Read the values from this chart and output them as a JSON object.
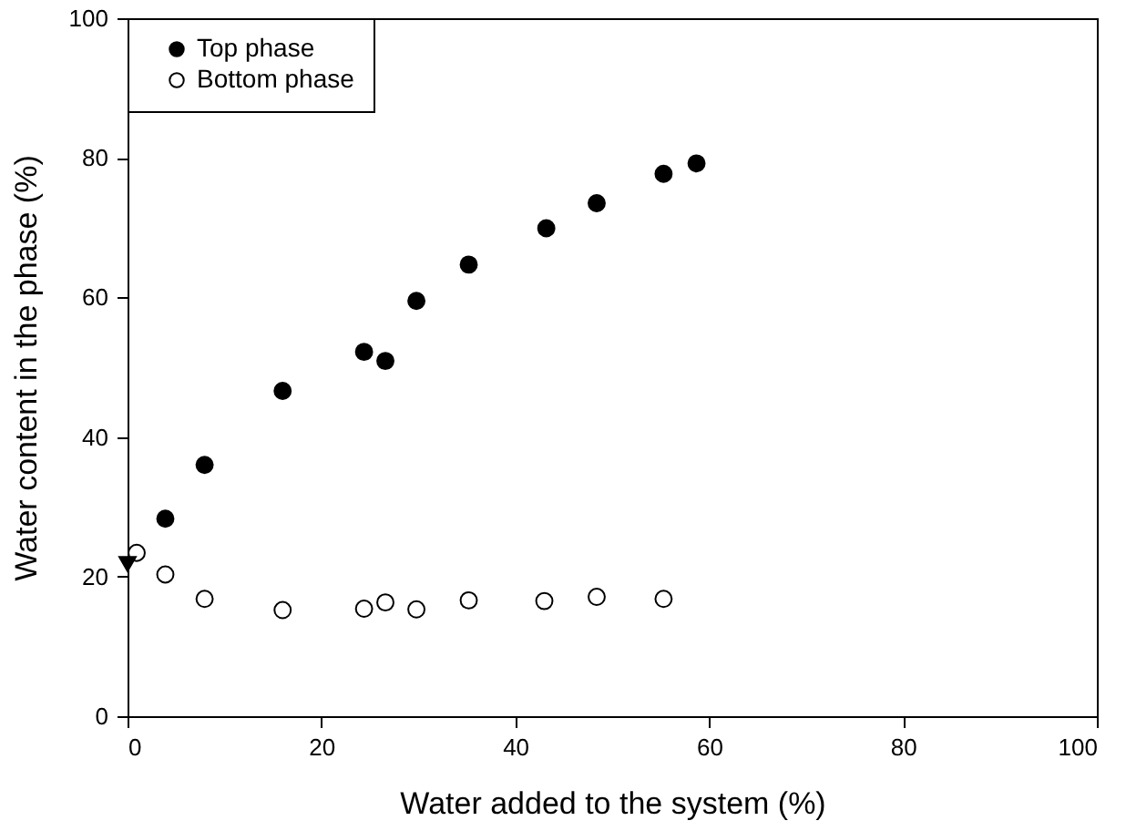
{
  "chart_data": {
    "type": "scatter",
    "xlabel": "Water added to the system (%)",
    "ylabel": "Water content in the phase (%)",
    "xlim": [
      0,
      100
    ],
    "xticks": [
      0,
      20,
      40,
      60,
      80,
      100
    ],
    "ylim": [
      0,
      100
    ],
    "yticks": [
      0,
      20,
      40,
      60,
      80,
      100
    ],
    "grid": false,
    "legend": "top left",
    "marker": "circle",
    "series": [
      {
        "name": "Top phase",
        "color": "#000000",
        "x": [
          3.9,
          7.95,
          16.0,
          24.4,
          26.6,
          29.8,
          35.2,
          43.2,
          48.4,
          55.3,
          58.7
        ],
        "values": [
          28.3,
          36.0,
          46.6,
          52.2,
          50.9,
          59.5,
          64.7,
          69.9,
          73.5,
          77.7,
          79.2
        ]
      },
      {
        "name": "Bottom phase",
        "color": "#ffffff",
        "x": [
          0.94,
          3.9,
          7.95,
          16.0,
          24.4,
          26.6,
          29.8,
          35.2,
          43.0,
          48.4,
          55.3
        ],
        "values": [
          23.4,
          20.3,
          16.8,
          15.2,
          15.4,
          16.3,
          15.3,
          16.6,
          16.5,
          17.1,
          16.8
        ]
      },
      {
        "color": "#000000",
        "marker": "triangle",
        "x": [
          0
        ],
        "values": [
          21.8
        ]
      }
    ]
  }
}
